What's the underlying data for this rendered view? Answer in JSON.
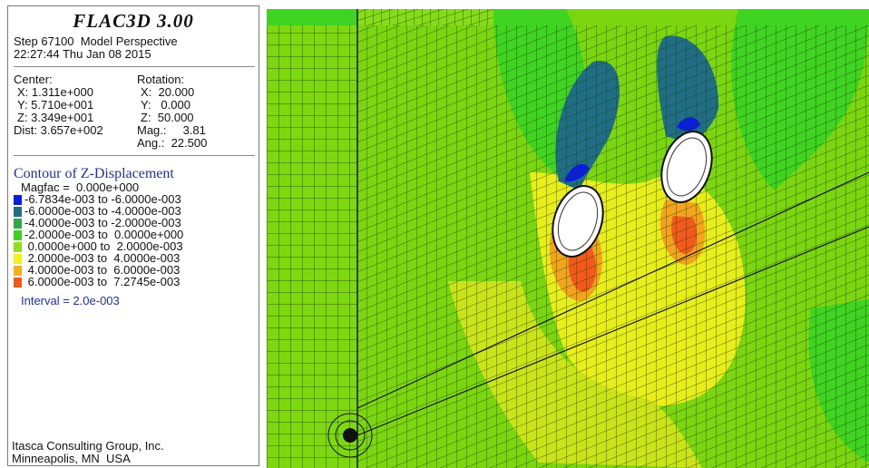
{
  "panel": {
    "app_title": "FLAC3D 3.00",
    "step_line": "Step 67100  Model Perspective",
    "time_line": "22:27:44 Thu Jan 08 2015",
    "center_label": "Center:",
    "center_x": "X: 1.311e+000",
    "center_y": "Y: 5.710e+001",
    "center_z": "Z: 3.349e+001",
    "dist": "Dist: 3.657e+002",
    "rotation_label": "Rotation:",
    "rot_x": "X:  20.000",
    "rot_y": "Y:   0.000",
    "rot_z": "Z:  50.000",
    "mag": "Mag.:     3.81",
    "ang": "Ang.:  22.500",
    "contour_title": "Contour of Z-Displacement",
    "magfac": "Magfac =  0.000e+000",
    "legend": [
      {
        "label": "-6.7834e-003 to -6.0000e-003",
        "color": "#0a1ee0"
      },
      {
        "label": "-6.0000e-003 to -4.0000e-003",
        "color": "#1f6e86"
      },
      {
        "label": "-4.0000e-003 to -2.0000e-003",
        "color": "#2fa84a"
      },
      {
        "label": "-2.0000e-003 to  0.0000e+000",
        "color": "#3ed21e"
      },
      {
        "label": " 0.0000e+000 to  2.0000e-003",
        "color": "#8ee018"
      },
      {
        "label": " 2.0000e-003 to  4.0000e-003",
        "color": "#f2f21a"
      },
      {
        "label": " 4.0000e-003 to  6.0000e-003",
        "color": "#f7b01e"
      },
      {
        "label": " 6.0000e-003 to  7.2745e-003",
        "color": "#f25a1c"
      }
    ],
    "interval": "Interval =  2.0e-003",
    "company": "Itasca Consulting Group, Inc.",
    "location": "Minneapolis, MN  USA"
  }
}
